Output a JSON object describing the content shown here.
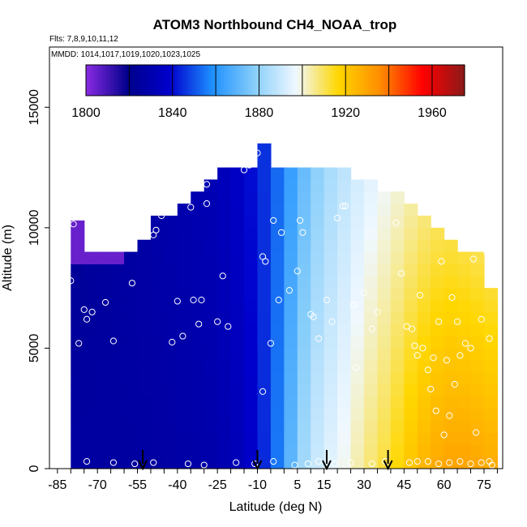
{
  "chart_data": {
    "type": "heatmap",
    "title": "ATOM3 Northbound CH4_NOAA_trop",
    "flights_label": "Flts: 7,8,9,10,11,12",
    "dates_label": "MMDD: 1014,1017,1019,1020,1023,1025",
    "xlabel": "Latitude (deg N)",
    "ylabel": "Altitude (m)",
    "xlim": [
      -88,
      82
    ],
    "ylim": [
      0,
      17500
    ],
    "x_ticks": [
      -85,
      -70,
      -55,
      -40,
      -25,
      -10,
      5,
      15,
      30,
      45,
      60,
      75
    ],
    "y_ticks": [
      0,
      5000,
      10000,
      15000
    ],
    "colorbar": {
      "min": 1800,
      "max": 1975,
      "ticks": [
        1800,
        1840,
        1880,
        1920,
        1960
      ],
      "colors": [
        "#8a2be2",
        "#00008b",
        "#0000cd",
        "#1e90ff",
        "#87cefa",
        "#f0f8ff",
        "#ffd700",
        "#ff8c00",
        "#ff0000",
        "#8b1a1a"
      ]
    },
    "grid": false,
    "arrows_lat": [
      -53,
      -10,
      16,
      39
    ],
    "lat_bins": [
      -80,
      -75,
      -70,
      -65,
      -60,
      -55,
      -50,
      -45,
      -40,
      -35,
      -30,
      -25,
      -20,
      -15,
      -10,
      -5,
      0,
      5,
      10,
      15,
      20,
      25,
      30,
      35,
      40,
      45,
      50,
      55,
      60,
      65,
      70,
      75
    ],
    "alt_bins": [
      0,
      500,
      1000,
      1500,
      2000,
      2500,
      3000,
      3500,
      4000,
      4500,
      5000,
      5500,
      6000,
      6500,
      7000,
      7500,
      8000,
      8500,
      9000,
      9500,
      10000,
      10500,
      11000,
      11500,
      12000,
      12500,
      13000
    ],
    "column_tops": [
      10300,
      9000,
      9000,
      9000,
      9000,
      9500,
      10500,
      10500,
      11000,
      11500,
      12000,
      12500,
      12500,
      12500,
      13500,
      12500,
      12500,
      12500,
      12500,
      12500,
      12500,
      12000,
      12000,
      11500,
      11500,
      11000,
      10500,
      10000,
      9500,
      9000,
      9000,
      7500
    ],
    "profile": {
      "lat": [
        -80,
        -50,
        -25,
        -15,
        -5,
        0,
        5,
        10,
        15,
        20,
        30,
        40,
        50,
        60,
        70,
        78
      ],
      "surface": [
        1826,
        1826,
        1829,
        1834,
        1848,
        1862,
        1878,
        1888,
        1893,
        1896,
        1906,
        1914,
        1924,
        1930,
        1930,
        1928
      ],
      "high": [
        1822,
        1828,
        1832,
        1838,
        1848,
        1858,
        1868,
        1876,
        1882,
        1886,
        1893,
        1898,
        1903,
        1906,
        1904,
        1902
      ]
    },
    "upper_south_purple": {
      "lat_max": -60,
      "alt_min": 8500,
      "value": 1805
    },
    "obs_points": [
      [
        -79,
        10150
      ],
      [
        -80,
        7800
      ],
      [
        -77,
        5200
      ],
      [
        -75,
        6600
      ],
      [
        -74,
        6200
      ],
      [
        -72,
        6500
      ],
      [
        -67,
        6900
      ],
      [
        -64,
        5300
      ],
      [
        -74,
        300
      ],
      [
        -64,
        250
      ],
      [
        -57,
        7700
      ],
      [
        -49,
        9700
      ],
      [
        -48,
        9900
      ],
      [
        -46,
        10500
      ],
      [
        -42,
        5250
      ],
      [
        -40,
        6950
      ],
      [
        -38,
        5500
      ],
      [
        -35,
        10850
      ],
      [
        -34,
        7000
      ],
      [
        -32,
        6000
      ],
      [
        -31,
        7000
      ],
      [
        -29,
        11000
      ],
      [
        -29,
        11800
      ],
      [
        -25,
        6100
      ],
      [
        -23,
        8000
      ],
      [
        -21,
        5900
      ],
      [
        -15,
        12400
      ],
      [
        -13,
        12600
      ],
      [
        -10,
        13100
      ],
      [
        -8,
        3200
      ],
      [
        -8,
        8800
      ],
      [
        -7,
        8600
      ],
      [
        -5,
        5200
      ],
      [
        -4,
        10300
      ],
      [
        -2,
        7000
      ],
      [
        -1,
        9800
      ],
      [
        2,
        7400
      ],
      [
        5,
        8200
      ],
      [
        6,
        10300
      ],
      [
        7,
        9800
      ],
      [
        10,
        6400
      ],
      [
        11,
        6300
      ],
      [
        13,
        5400
      ],
      [
        14,
        12900
      ],
      [
        16,
        7000
      ],
      [
        18,
        6100
      ],
      [
        20,
        10400
      ],
      [
        22,
        10900
      ],
      [
        23,
        10900
      ],
      [
        26,
        6800
      ],
      [
        27,
        4200
      ],
      [
        30,
        7300
      ],
      [
        33,
        5800
      ],
      [
        35,
        6500
      ],
      [
        38,
        12300
      ],
      [
        42,
        10200
      ],
      [
        44,
        8100
      ],
      [
        46,
        5900
      ],
      [
        48,
        5800
      ],
      [
        49,
        5100
      ],
      [
        50,
        4700
      ],
      [
        51,
        7200
      ],
      [
        52,
        5000
      ],
      [
        54,
        4100
      ],
      [
        55,
        3300
      ],
      [
        56,
        4600
      ],
      [
        57,
        2400
      ],
      [
        58,
        6100
      ],
      [
        59,
        8600
      ],
      [
        60,
        1400
      ],
      [
        61,
        4500
      ],
      [
        62,
        2200
      ],
      [
        63,
        7100
      ],
      [
        64,
        3500
      ],
      [
        65,
        6100
      ],
      [
        66,
        4700
      ],
      [
        68,
        5200
      ],
      [
        70,
        5000
      ],
      [
        71,
        8700
      ],
      [
        72,
        1500
      ],
      [
        74,
        6200
      ],
      [
        76,
        9000
      ],
      [
        77,
        5400
      ],
      [
        -56,
        200
      ],
      [
        -49,
        250
      ],
      [
        -36,
        200
      ],
      [
        -30,
        150
      ],
      [
        -18,
        250
      ],
      [
        -11,
        200
      ],
      [
        -4,
        300
      ],
      [
        4,
        150
      ],
      [
        9,
        200
      ],
      [
        13,
        300
      ],
      [
        19,
        200
      ],
      [
        25,
        250
      ],
      [
        33,
        200
      ],
      [
        38,
        300
      ],
      [
        47,
        250
      ],
      [
        50,
        300
      ],
      [
        54,
        300
      ],
      [
        58,
        200
      ],
      [
        62,
        250
      ],
      [
        66,
        300
      ],
      [
        70,
        200
      ],
      [
        74,
        250
      ],
      [
        77,
        300
      ],
      [
        78,
        150
      ]
    ]
  }
}
